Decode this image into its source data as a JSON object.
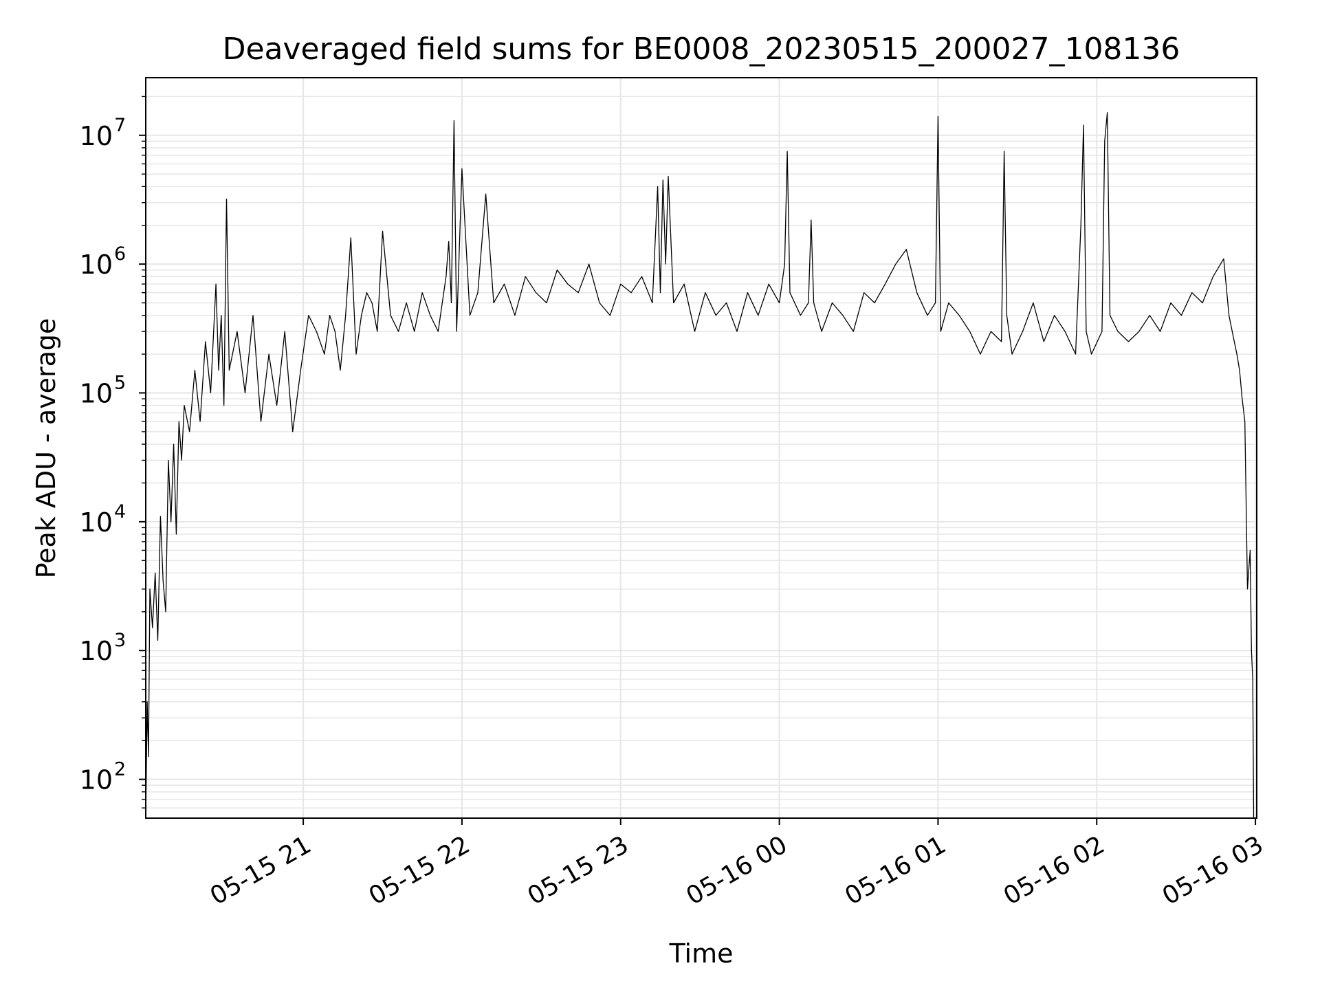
{
  "chart_data": {
    "type": "line",
    "title": "Deaveraged field sums for BE0008_20230515_200027_108136",
    "xlabel": "Time",
    "ylabel": "Peak ADU - average",
    "yscale": "log",
    "ylim": [
      50,
      28000000
    ],
    "xlim": [
      "2023-05-15 20:00:27",
      "2023-05-16 03:00:30"
    ],
    "grid": true,
    "x_ticks": [
      {
        "label": "05-15 21",
        "time": "2023-05-15 21:00"
      },
      {
        "label": "05-15 22",
        "time": "2023-05-15 22:00"
      },
      {
        "label": "05-15 23",
        "time": "2023-05-15 23:00"
      },
      {
        "label": "05-16 00",
        "time": "2023-05-16 00:00"
      },
      {
        "label": "05-16 01",
        "time": "2023-05-16 01:00"
      },
      {
        "label": "05-16 02",
        "time": "2023-05-16 02:00"
      },
      {
        "label": "05-16 03",
        "time": "2023-05-16 03:00"
      }
    ],
    "y_ticks": [
      {
        "base": "10",
        "exp": "2",
        "value": 100
      },
      {
        "base": "10",
        "exp": "3",
        "value": 1000
      },
      {
        "base": "10",
        "exp": "4",
        "value": 10000
      },
      {
        "base": "10",
        "exp": "5",
        "value": 100000
      },
      {
        "base": "10",
        "exp": "6",
        "value": 1000000
      },
      {
        "base": "10",
        "exp": "7",
        "value": 10000000
      }
    ],
    "series_color": "#000000",
    "series": [
      {
        "x": [
          "2023-05-15 20:00:30",
          "2023-05-15 20:01:00",
          "2023-05-15 20:01:30",
          "2023-05-15 20:02:00",
          "2023-05-15 20:03:00",
          "2023-05-15 20:04:00",
          "2023-05-15 20:05:00",
          "2023-05-15 20:06:00",
          "2023-05-15 20:07:00",
          "2023-05-15 20:08:00",
          "2023-05-15 20:09:00",
          "2023-05-15 20:10:00",
          "2023-05-15 20:11:00",
          "2023-05-15 20:12:00",
          "2023-05-15 20:13:00",
          "2023-05-15 20:14:00",
          "2023-05-15 20:15:00",
          "2023-05-15 20:17:00",
          "2023-05-15 20:19:00",
          "2023-05-15 20:21:00",
          "2023-05-15 20:23:00",
          "2023-05-15 20:25:00",
          "2023-05-15 20:27:00",
          "2023-05-15 20:28:00",
          "2023-05-15 20:29:00",
          "2023-05-15 20:30:00",
          "2023-05-15 20:31:00",
          "2023-05-15 20:32:00",
          "2023-05-15 20:35:00",
          "2023-05-15 20:38:00",
          "2023-05-15 20:41:00",
          "2023-05-15 20:44:00",
          "2023-05-15 20:47:00",
          "2023-05-15 20:50:00",
          "2023-05-15 20:53:00",
          "2023-05-15 20:56:00",
          "2023-05-15 20:59:00",
          "2023-05-15 21:02:00",
          "2023-05-15 21:05:00",
          "2023-05-15 21:08:00",
          "2023-05-15 21:10:00",
          "2023-05-15 21:12:00",
          "2023-05-15 21:14:00",
          "2023-05-15 21:16:00",
          "2023-05-15 21:18:00",
          "2023-05-15 21:20:00",
          "2023-05-15 21:22:00",
          "2023-05-15 21:24:00",
          "2023-05-15 21:26:00",
          "2023-05-15 21:28:00",
          "2023-05-15 21:30:00",
          "2023-05-15 21:33:00",
          "2023-05-15 21:36:00",
          "2023-05-15 21:39:00",
          "2023-05-15 21:42:00",
          "2023-05-15 21:45:00",
          "2023-05-15 21:48:00",
          "2023-05-15 21:51:00",
          "2023-05-15 21:54:00",
          "2023-05-15 21:55:00",
          "2023-05-15 21:56:00",
          "2023-05-15 21:57:00",
          "2023-05-15 21:58:00",
          "2023-05-15 22:00:00",
          "2023-05-15 22:03:00",
          "2023-05-15 22:06:00",
          "2023-05-15 22:09:00",
          "2023-05-15 22:12:00",
          "2023-05-15 22:16:00",
          "2023-05-15 22:20:00",
          "2023-05-15 22:24:00",
          "2023-05-15 22:28:00",
          "2023-05-15 22:32:00",
          "2023-05-15 22:36:00",
          "2023-05-15 22:40:00",
          "2023-05-15 22:44:00",
          "2023-05-15 22:48:00",
          "2023-05-15 22:52:00",
          "2023-05-15 22:56:00",
          "2023-05-15 23:00:00",
          "2023-05-15 23:04:00",
          "2023-05-15 23:08:00",
          "2023-05-15 23:12:00",
          "2023-05-15 23:14:00",
          "2023-05-15 23:15:00",
          "2023-05-15 23:16:00",
          "2023-05-15 23:17:00",
          "2023-05-15 23:18:00",
          "2023-05-15 23:20:00",
          "2023-05-15 23:24:00",
          "2023-05-15 23:28:00",
          "2023-05-15 23:32:00",
          "2023-05-15 23:36:00",
          "2023-05-15 23:40:00",
          "2023-05-15 23:44:00",
          "2023-05-15 23:48:00",
          "2023-05-15 23:52:00",
          "2023-05-15 23:56:00",
          "2023-05-16 00:00:00",
          "2023-05-16 00:02:00",
          "2023-05-16 00:03:00",
          "2023-05-16 00:04:00",
          "2023-05-16 00:08:00",
          "2023-05-16 00:11:00",
          "2023-05-16 00:12:00",
          "2023-05-16 00:13:00",
          "2023-05-16 00:16:00",
          "2023-05-16 00:20:00",
          "2023-05-16 00:24:00",
          "2023-05-16 00:28:00",
          "2023-05-16 00:32:00",
          "2023-05-16 00:36:00",
          "2023-05-16 00:40:00",
          "2023-05-16 00:44:00",
          "2023-05-16 00:48:00",
          "2023-05-16 00:52:00",
          "2023-05-16 00:56:00",
          "2023-05-16 00:59:00",
          "2023-05-16 01:00:00",
          "2023-05-16 01:01:00",
          "2023-05-16 01:04:00",
          "2023-05-16 01:08:00",
          "2023-05-16 01:12:00",
          "2023-05-16 01:16:00",
          "2023-05-16 01:20:00",
          "2023-05-16 01:24:00",
          "2023-05-16 01:25:00",
          "2023-05-16 01:26:00",
          "2023-05-16 01:28:00",
          "2023-05-16 01:32:00",
          "2023-05-16 01:36:00",
          "2023-05-16 01:40:00",
          "2023-05-16 01:44:00",
          "2023-05-16 01:48:00",
          "2023-05-16 01:52:00",
          "2023-05-16 01:54:00",
          "2023-05-16 01:55:00",
          "2023-05-16 01:56:00",
          "2023-05-16 01:58:00",
          "2023-05-16 02:02:00",
          "2023-05-16 02:03:00",
          "2023-05-16 02:04:00",
          "2023-05-16 02:05:00",
          "2023-05-16 02:08:00",
          "2023-05-16 02:12:00",
          "2023-05-16 02:16:00",
          "2023-05-16 02:20:00",
          "2023-05-16 02:24:00",
          "2023-05-16 02:28:00",
          "2023-05-16 02:32:00",
          "2023-05-16 02:36:00",
          "2023-05-16 02:40:00",
          "2023-05-16 02:44:00",
          "2023-05-16 02:48:00",
          "2023-05-16 02:50:00",
          "2023-05-16 02:52:00",
          "2023-05-16 02:53:00",
          "2023-05-16 02:54:00",
          "2023-05-16 02:55:00",
          "2023-05-16 02:56:00",
          "2023-05-16 02:57:00",
          "2023-05-16 02:58:00",
          "2023-05-16 02:58:30",
          "2023-05-16 02:59:00",
          "2023-05-16 02:59:20"
        ],
        "y": [
          60,
          400,
          150,
          3000,
          1500,
          4000,
          1200,
          11000,
          3500,
          2000,
          30000,
          10000,
          40000,
          8000,
          60000,
          30000,
          80000,
          50000,
          150000,
          60000,
          250000,
          100000,
          700000,
          150000,
          400000,
          80000,
          3200000,
          150000,
          300000,
          100000,
          400000,
          60000,
          200000,
          80000,
          300000,
          50000,
          150000,
          400000,
          300000,
          200000,
          400000,
          300000,
          150000,
          400000,
          1600000,
          200000,
          400000,
          600000,
          500000,
          300000,
          1800000,
          400000,
          300000,
          500000,
          300000,
          600000,
          400000,
          300000,
          800000,
          1500000,
          500000,
          13000000,
          300000,
          5500000,
          400000,
          600000,
          3500000,
          500000,
          700000,
          400000,
          800000,
          600000,
          500000,
          900000,
          700000,
          600000,
          1000000,
          500000,
          400000,
          700000,
          600000,
          800000,
          500000,
          4000000,
          600000,
          4500000,
          1000000,
          4800000,
          500000,
          700000,
          300000,
          600000,
          400000,
          500000,
          300000,
          600000,
          400000,
          700000,
          500000,
          1000000,
          7500000,
          600000,
          400000,
          500000,
          2200000,
          500000,
          300000,
          500000,
          400000,
          300000,
          600000,
          500000,
          700000,
          1000000,
          1300000,
          600000,
          400000,
          500000,
          14000000,
          300000,
          500000,
          400000,
          300000,
          200000,
          300000,
          250000,
          7500000,
          400000,
          200000,
          300000,
          500000,
          250000,
          400000,
          300000,
          200000,
          2000000,
          12000000,
          300000,
          200000,
          300000,
          9000000,
          15000000,
          400000,
          300000,
          250000,
          300000,
          400000,
          300000,
          500000,
          400000,
          600000,
          500000,
          800000,
          1100000,
          400000,
          250000,
          200000,
          150000,
          90000,
          60000,
          3000,
          6000,
          1000,
          600,
          50
        ]
      }
    ]
  }
}
